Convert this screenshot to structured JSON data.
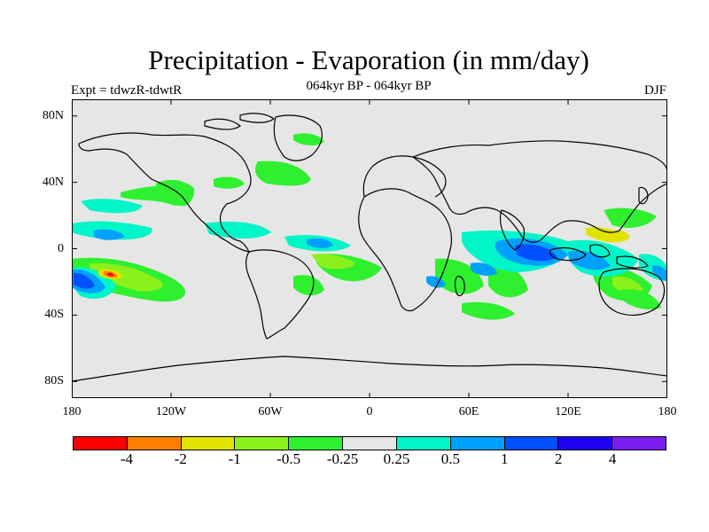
{
  "title": "Precipitation - Evaporation (in mm/day)",
  "subtitle": "064kyr BP - 064kyr BP",
  "left_label": "Expt = tdwzR-tdwtR",
  "right_label": "DJF",
  "colors": {
    "land_background": "#e6e6e6",
    "frame": "#000000"
  },
  "chart_data": {
    "type": "heatmap",
    "projection": "cylindrical-equidistant",
    "lon_range": [
      -180,
      180
    ],
    "lat_range": [
      -90,
      90
    ],
    "lat_ticks": [
      "80N",
      "40N",
      "0",
      "40S",
      "80S"
    ],
    "lat_tick_values": [
      80,
      40,
      0,
      -40,
      -80
    ],
    "lon_ticks": [
      "180",
      "120W",
      "60W",
      "0",
      "60E",
      "120E",
      "180"
    ],
    "lon_tick_values": [
      -180,
      -120,
      -60,
      0,
      60,
      120,
      180
    ],
    "colorbar": {
      "colors": [
        "#ff0000",
        "#ff7f00",
        "#e2e200",
        "#8cf01a",
        "#2ef02e",
        "#e6e6e6",
        "#00f5c8",
        "#00a0ff",
        "#0050ff",
        "#2000f0",
        "#7a1ef0"
      ],
      "labels": [
        "-4",
        "-2",
        "-1",
        "-0.5",
        "-0.25",
        "0.25",
        "0.5",
        "1",
        "2",
        "4"
      ]
    }
  }
}
